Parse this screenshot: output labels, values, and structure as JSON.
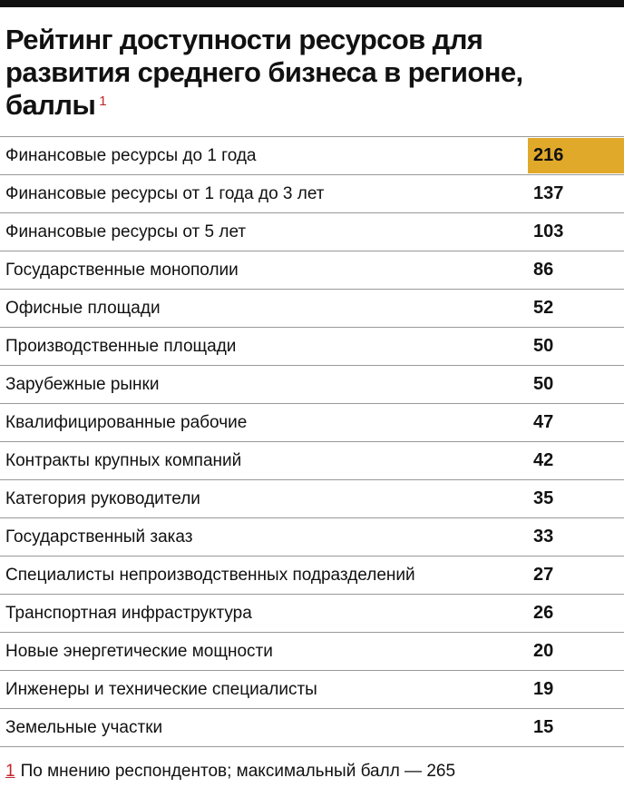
{
  "header": {
    "title": "Рейтинг доступности ресурсов для развития среднего бизнеса в регионе, баллы",
    "note_mark": "1"
  },
  "table": {
    "rows": [
      [
        "Финансовые ресурсы до 1 года",
        216
      ],
      [
        "Финансовые ресурсы от 1 года до 3 лет",
        137
      ],
      [
        "Финансовые ресурсы от  5 лет",
        103
      ],
      [
        "Государственные монополии",
        86
      ],
      [
        "Офисные площади",
        52
      ],
      [
        "Производственные площади",
        50
      ],
      [
        "Зарубежные рынки",
        50
      ],
      [
        "Квалифицированные рабочие",
        47
      ],
      [
        "Контракты крупных компаний",
        42
      ],
      [
        "Категория руководители",
        35
      ],
      [
        "Государственный заказ",
        33
      ],
      [
        "Специалисты непроизводственных подразделений",
        27
      ],
      [
        "Транспортная инфраструктура",
        26
      ],
      [
        "Новые энергетические мощности",
        20
      ],
      [
        "Инженеры и технические специалисты",
        19
      ],
      [
        "Земельные участки",
        15
      ]
    ]
  },
  "footnote": {
    "mark": "1",
    "text": "По мнению респондентов; максимальный балл — 265"
  }
}
